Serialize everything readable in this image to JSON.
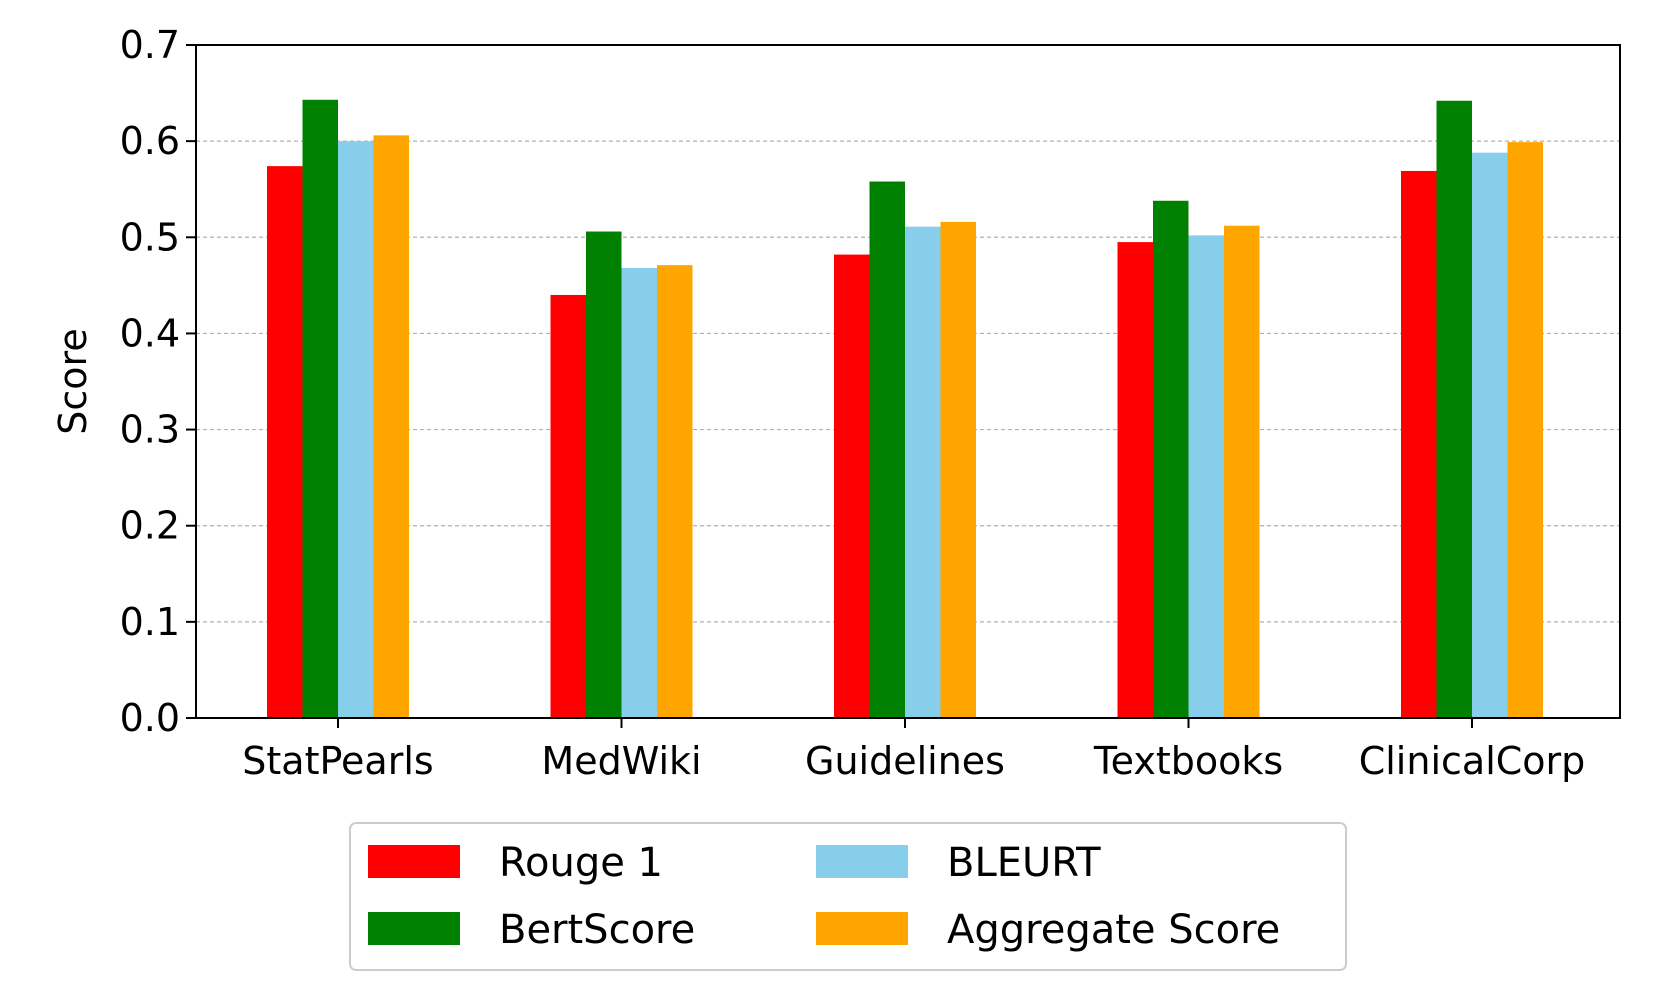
{
  "chart_data": {
    "type": "bar",
    "title": "",
    "xlabel": "",
    "ylabel": "Score",
    "ylim": [
      0,
      0.7
    ],
    "yticks": [
      "0.0",
      "0.1",
      "0.2",
      "0.3",
      "0.4",
      "0.5",
      "0.6",
      "0.7"
    ],
    "grid": "horizontal dashed",
    "legend_position": "bottom-center",
    "categories": [
      "StatPearls",
      "MedWiki",
      "Guidelines",
      "Textbooks",
      "ClinicalCorp"
    ],
    "series": [
      {
        "name": "Rouge 1",
        "color": "#ff0000",
        "values": [
          0.574,
          0.44,
          0.482,
          0.495,
          0.569
        ]
      },
      {
        "name": "BertScore",
        "color": "#008000",
        "values": [
          0.643,
          0.506,
          0.558,
          0.538,
          0.642
        ]
      },
      {
        "name": "BLEURT",
        "color": "#87ceeb",
        "values": [
          0.6,
          0.468,
          0.511,
          0.502,
          0.588
        ]
      },
      {
        "name": "Aggregate Score",
        "color": "#ffa500",
        "values": [
          0.606,
          0.471,
          0.516,
          0.512,
          0.599
        ]
      }
    ]
  }
}
